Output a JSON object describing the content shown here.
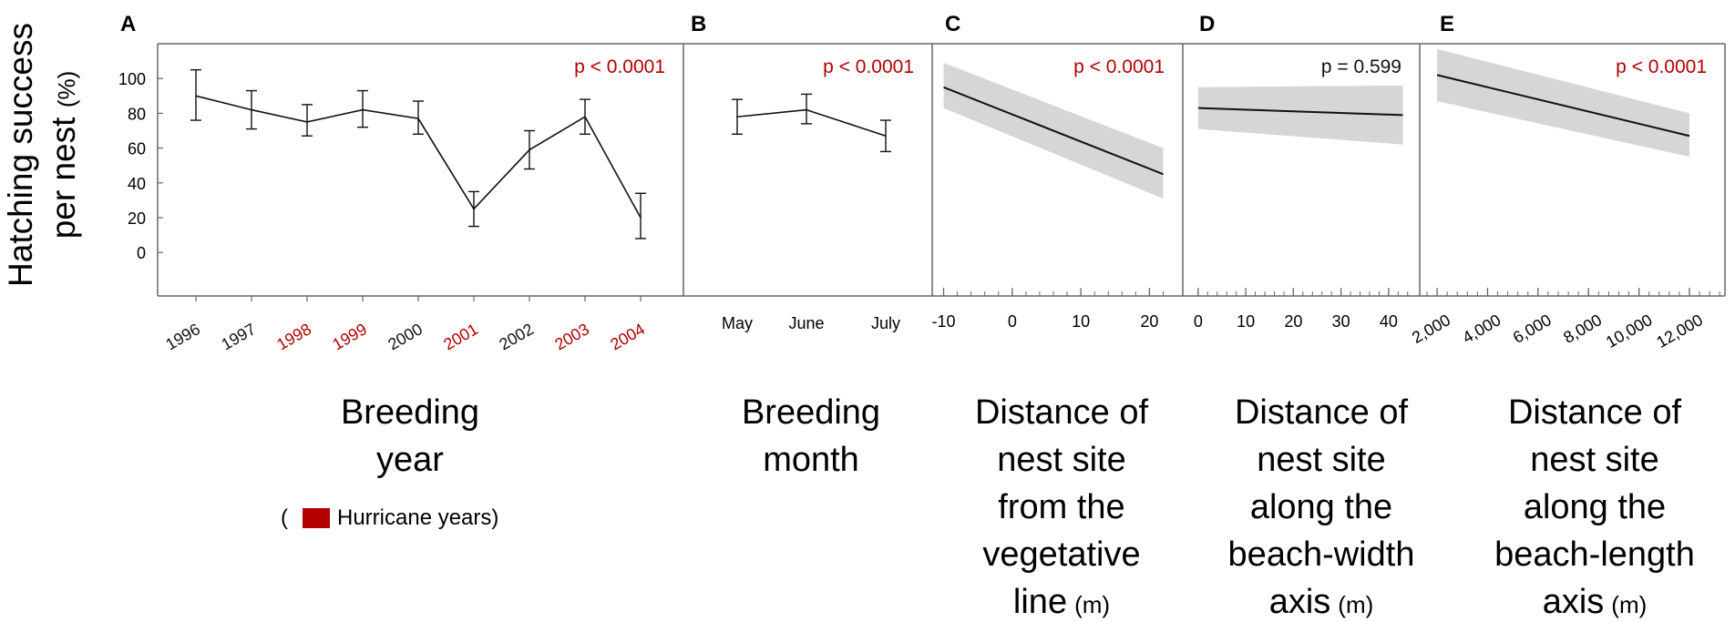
{
  "colors": {
    "hurricane": "#b30000",
    "line": "#111111",
    "band": "#d6d6d6",
    "frame": "#666666"
  },
  "y_axis": {
    "title_line1": "Hatching success",
    "title_line2": "per nest",
    "unit": "(%)"
  },
  "legend": {
    "open": "(",
    "label": "Hurricane years)"
  },
  "chart_data": [
    {
      "id": "A",
      "panel_label": "A",
      "type": "line",
      "title_lines": [
        "Breeding",
        "year"
      ],
      "unit": "",
      "p_value": "p < 0.0001",
      "p_significant": true,
      "x": [
        1996,
        1997,
        1998,
        1999,
        2000,
        2001,
        2002,
        2003,
        2004
      ],
      "categories": [
        "1996",
        "1997",
        "1998",
        "1999",
        "2000",
        "2001",
        "2002",
        "2003",
        "2004"
      ],
      "hurricane": [
        false,
        false,
        true,
        true,
        false,
        true,
        false,
        true,
        true
      ],
      "values": [
        90,
        82,
        75,
        82,
        77,
        25,
        59,
        78,
        20
      ],
      "err_low": [
        76,
        71,
        67,
        72,
        68,
        15,
        48,
        68,
        8
      ],
      "err_high": [
        105,
        93,
        85,
        93,
        87,
        35,
        70,
        88,
        34
      ],
      "xlim": [
        1996,
        2004
      ],
      "ylim": [
        -25,
        120
      ],
      "yticks": [
        0,
        20,
        40,
        60,
        80,
        100
      ]
    },
    {
      "id": "B",
      "panel_label": "B",
      "type": "line",
      "title_lines": [
        "Breeding",
        "month"
      ],
      "unit": "",
      "p_value": "p < 0.0001",
      "p_significant": true,
      "categories": [
        "May",
        "June",
        "July"
      ],
      "values": [
        78,
        82,
        67
      ],
      "err_low": [
        68,
        74,
        58
      ],
      "err_high": [
        88,
        91,
        76
      ],
      "ylim": [
        -25,
        120
      ]
    },
    {
      "id": "C",
      "panel_label": "C",
      "type": "line",
      "title_lines": [
        "Distance of",
        "nest site",
        "from the",
        "vegetative",
        "line"
      ],
      "unit": "(m)",
      "p_value": "p < 0.0001",
      "p_significant": true,
      "x": [
        -10,
        22
      ],
      "y": [
        95,
        45
      ],
      "ci_low": [
        83,
        31
      ],
      "ci_high": [
        109,
        60
      ],
      "xlim": [
        -11,
        23
      ],
      "xticks": [
        -10,
        0,
        10,
        20
      ],
      "xtick_labels": [
        "-10",
        "0",
        "10",
        "20"
      ],
      "ylim": [
        -25,
        120
      ]
    },
    {
      "id": "D",
      "panel_label": "D",
      "type": "line",
      "title_lines": [
        "Distance of",
        "nest site",
        "along the",
        "beach-width",
        "axis"
      ],
      "unit": "(m)",
      "p_value": "p = 0.599",
      "p_significant": false,
      "x": [
        0,
        43
      ],
      "y": [
        83,
        79
      ],
      "ci_low": [
        71,
        62
      ],
      "ci_high": [
        95,
        96
      ],
      "xlim": [
        -1.5,
        45
      ],
      "xticks": [
        0,
        10,
        20,
        30,
        40
      ],
      "xtick_labels": [
        "0",
        "10",
        "20",
        "30",
        "40"
      ],
      "ylim": [
        -25,
        120
      ]
    },
    {
      "id": "E",
      "panel_label": "E",
      "type": "line",
      "title_lines": [
        "Distance of",
        "nest site",
        "along the",
        "beach-length",
        "axis"
      ],
      "unit": "(m)",
      "p_value": "p < 0.0001",
      "p_significant": true,
      "x": [
        2000,
        12000
      ],
      "y": [
        102,
        67
      ],
      "ci_low": [
        87,
        55
      ],
      "ci_high": [
        117,
        80
      ],
      "xlim": [
        1600,
        13300
      ],
      "xticks": [
        2000,
        4000,
        6000,
        8000,
        10000,
        12000
      ],
      "xtick_labels": [
        "2,000",
        "4,000",
        "6,000",
        "8,000",
        "10,000",
        "12,000"
      ],
      "ylim": [
        -25,
        120
      ]
    }
  ]
}
